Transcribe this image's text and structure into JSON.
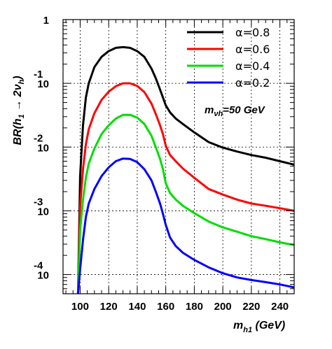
{
  "chart_data": {
    "type": "line",
    "xlabel": "m_h1 (GeV)",
    "xlabel_main": "m",
    "xlabel_sub": "h1",
    "xlabel_unit": " (GeV)",
    "ylabel": "BR(h1 → 2νh)",
    "ylabel_parts": {
      "a": "BR(h",
      "b": "1",
      "c": " → 2ν",
      "d": "h",
      "e": ")"
    },
    "annotation": {
      "main": "m",
      "sub": "νh",
      "rest": "=50 GeV"
    },
    "xlim": [
      88,
      250
    ],
    "ylim": [
      5e-05,
      1
    ],
    "yscale": "log",
    "grid": true,
    "legend_position": "top-right",
    "x_ticks": [
      "100",
      "120",
      "140",
      "160",
      "180",
      "200",
      "220",
      "240"
    ],
    "x_tick_values": [
      100,
      120,
      140,
      160,
      180,
      200,
      220,
      240
    ],
    "y_ticks": [
      {
        "base": "1",
        "exp": ""
      },
      {
        "base": "10",
        "exp": "-1"
      },
      {
        "base": "10",
        "exp": "-2"
      },
      {
        "base": "10",
        "exp": "-3"
      },
      {
        "base": "10",
        "exp": "-4"
      }
    ],
    "y_tick_values": [
      1,
      0.1,
      0.01,
      0.001,
      0.0001
    ],
    "series": [
      {
        "name": "α=0.8",
        "color": "#000000",
        "x": [
          98.5,
          100,
          102,
          104,
          106,
          110,
          115,
          120,
          125,
          130,
          135,
          140,
          145,
          150,
          153,
          156,
          158,
          160,
          163,
          167,
          172,
          180,
          190,
          200,
          210,
          220,
          230,
          240,
          250
        ],
        "y": [
          5e-05,
          0.0035,
          0.022,
          0.06,
          0.1,
          0.18,
          0.26,
          0.32,
          0.36,
          0.37,
          0.36,
          0.32,
          0.26,
          0.17,
          0.12,
          0.08,
          0.06,
          0.045,
          0.035,
          0.028,
          0.023,
          0.017,
          0.012,
          0.0098,
          0.0085,
          0.0075,
          0.0068,
          0.006,
          0.0053
        ]
      },
      {
        "name": "α=0.6",
        "color": "#ff0000",
        "x": [
          98.5,
          100,
          102,
          104,
          106,
          110,
          115,
          120,
          125,
          130,
          135,
          140,
          145,
          150,
          153,
          156,
          158,
          160,
          163,
          167,
          172,
          180,
          190,
          200,
          210,
          220,
          230,
          240,
          250
        ],
        "y": [
          5e-05,
          0.0012,
          0.0045,
          0.011,
          0.019,
          0.034,
          0.055,
          0.074,
          0.09,
          0.1,
          0.1,
          0.091,
          0.073,
          0.048,
          0.033,
          0.022,
          0.016,
          0.0105,
          0.0075,
          0.006,
          0.0046,
          0.0033,
          0.0022,
          0.0018,
          0.0015,
          0.0013,
          0.0012,
          0.0011,
          0.001
        ]
      },
      {
        "name": "α=0.4",
        "color": "#00dd00",
        "x": [
          98.5,
          100,
          102,
          104,
          106,
          110,
          115,
          120,
          125,
          130,
          135,
          140,
          145,
          150,
          153,
          156,
          158,
          160,
          163,
          167,
          172,
          180,
          190,
          200,
          210,
          220,
          230,
          240,
          250
        ],
        "y": [
          5e-05,
          0.0005,
          0.0015,
          0.0033,
          0.0055,
          0.0095,
          0.016,
          0.022,
          0.028,
          0.032,
          0.032,
          0.029,
          0.023,
          0.015,
          0.01,
          0.0065,
          0.0045,
          0.0027,
          0.0019,
          0.0015,
          0.0012,
          0.00092,
          0.00068,
          0.00055,
          0.00047,
          0.0004,
          0.00036,
          0.00032,
          0.00029
        ]
      },
      {
        "name": "α=0.2",
        "color": "#0000ff",
        "x": [
          98.5,
          100,
          102,
          104,
          106,
          110,
          115,
          120,
          125,
          130,
          135,
          140,
          145,
          150,
          153,
          156,
          158,
          160,
          163,
          167,
          172,
          180,
          190,
          200,
          210,
          220,
          230,
          240,
          250
        ],
        "y": [
          5e-05,
          0.00012,
          0.00035,
          0.0008,
          0.0013,
          0.0022,
          0.0035,
          0.0048,
          0.006,
          0.0066,
          0.0065,
          0.0058,
          0.0045,
          0.003,
          0.002,
          0.0013,
          0.0009,
          0.0006,
          0.00038,
          0.00028,
          0.00022,
          0.00017,
          0.00013,
          0.000105,
          9e-05,
          8.2e-05,
          7.6e-05,
          7e-05,
          6.3e-05
        ]
      }
    ]
  }
}
